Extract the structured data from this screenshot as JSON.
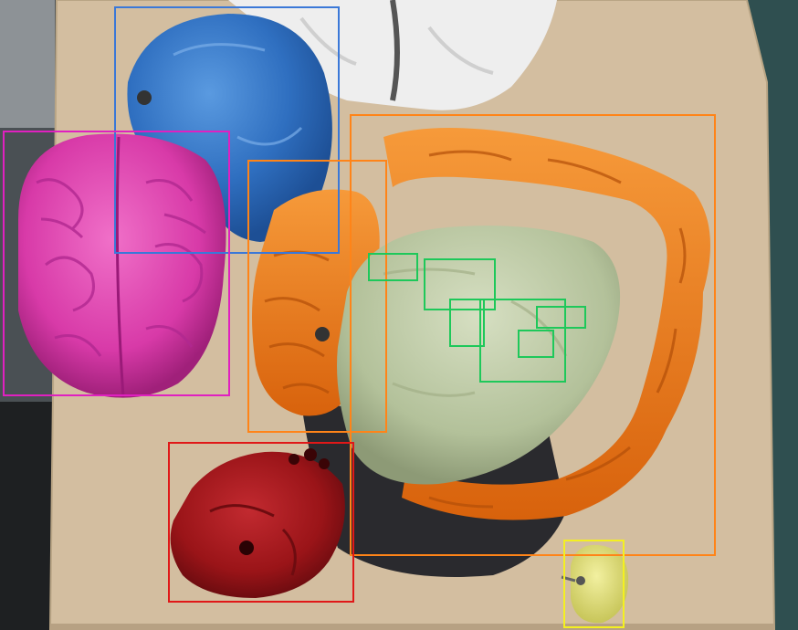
{
  "annotation_colors": {
    "blue": "#3a78d8",
    "magenta": "#e020c0",
    "orange": "#ff8418",
    "green": "#1ec85a",
    "red": "#e01818",
    "yellow": "#f4f020"
  },
  "objects": [
    {
      "name": "blue-organ-model",
      "color": "#3a78d8"
    },
    {
      "name": "brain-model",
      "color": "#e020c0"
    },
    {
      "name": "small-intestine-model",
      "color": "#ff8418"
    },
    {
      "name": "large-intestine-model",
      "color": "#ff8418"
    },
    {
      "name": "stomach-model",
      "color": "#1ec85a"
    },
    {
      "name": "heart-model",
      "color": "#e01818"
    },
    {
      "name": "apple-model",
      "color": "#f4f020"
    }
  ]
}
